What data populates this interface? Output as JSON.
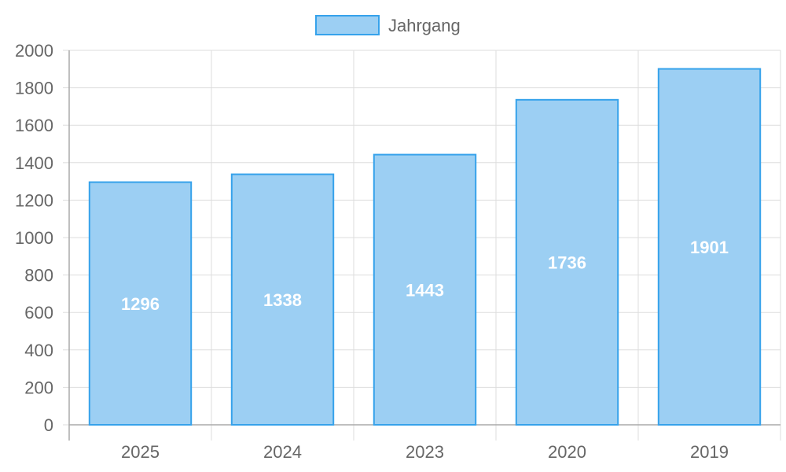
{
  "chart_data": {
    "type": "bar",
    "categories": [
      "2025",
      "2024",
      "2023",
      "2020",
      "2019"
    ],
    "series": [
      {
        "name": "Jahrgang",
        "values": [
          1296,
          1338,
          1443,
          1736,
          1901
        ]
      }
    ],
    "data_labels": [
      "1296",
      "1338",
      "1443",
      "1736",
      "1901"
    ],
    "y_ticks": [
      "0",
      "200",
      "400",
      "600",
      "800",
      "1000",
      "1200",
      "1400",
      "1600",
      "1800",
      "2000"
    ],
    "ylim": [
      0,
      2000
    ],
    "grid": true,
    "legend_position": "top-center",
    "colors": {
      "bar_fill": "#9ccff3",
      "bar_border": "#36a2eb",
      "label": "#ffffff"
    }
  }
}
